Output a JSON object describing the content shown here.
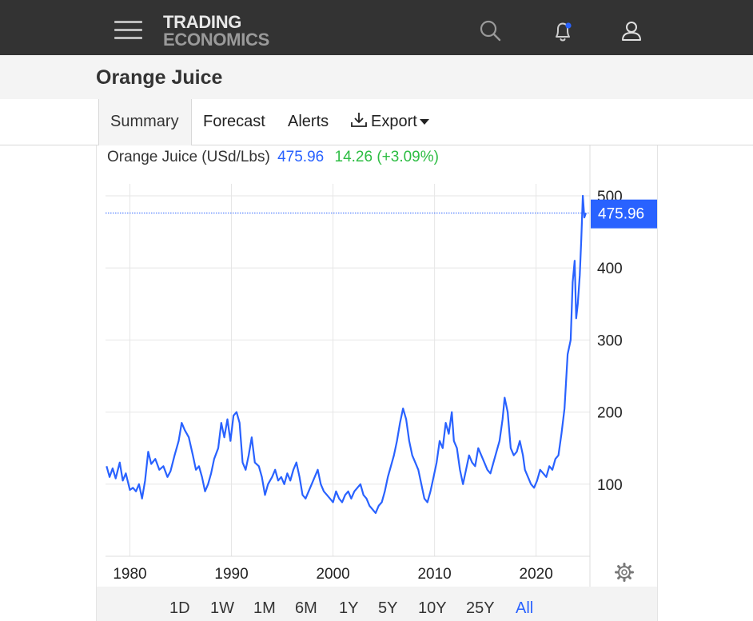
{
  "topbar": {
    "logo_line1": "TRADING",
    "logo_line2": "ECONOMICS",
    "icons": [
      "menu-icon",
      "search-icon",
      "bell-icon",
      "user-icon"
    ],
    "notification_dot_color": "#2962ff"
  },
  "page": {
    "title": "Orange Juice"
  },
  "tabs": [
    {
      "label": "Summary",
      "active": true
    },
    {
      "label": "Forecast"
    },
    {
      "label": "Alerts"
    },
    {
      "label": "Export",
      "icon": "download-icon"
    }
  ],
  "quote": {
    "name": "Orange Juice (USd/Lbs)",
    "price": "475.96",
    "change": "14.26 (+3.09%)",
    "price_color": "#2962ff",
    "change_color": "#2dbd43"
  },
  "ranges": {
    "buttons": [
      "1D",
      "1W",
      "1M",
      "6M",
      "1Y",
      "5Y",
      "10Y",
      "25Y",
      "All"
    ],
    "active": "All"
  },
  "chart_data": {
    "type": "line",
    "title": "Orange Juice (USd/Lbs)",
    "xlabel": "",
    "ylabel": "",
    "xlim": [
      1977.6,
      2025.3
    ],
    "ylim": [
      0,
      500
    ],
    "x_ticks": [
      1980,
      1990,
      2000,
      2010,
      2020
    ],
    "y_ticks": [
      100,
      200,
      300,
      400,
      500
    ],
    "grid": true,
    "y_axis_position": "right",
    "line_color": "#2962ff",
    "last_value_label": "475.96",
    "series": [
      {
        "values": [
          [
            1977.7,
            125
          ],
          [
            1978.0,
            110
          ],
          [
            1978.3,
            122
          ],
          [
            1978.6,
            108
          ],
          [
            1979.0,
            130
          ],
          [
            1979.3,
            105
          ],
          [
            1979.6,
            115
          ],
          [
            1980.0,
            92
          ],
          [
            1980.3,
            95
          ],
          [
            1980.6,
            90
          ],
          [
            1980.9,
            100
          ],
          [
            1981.2,
            80
          ],
          [
            1981.5,
            105
          ],
          [
            1981.8,
            145
          ],
          [
            1982.1,
            128
          ],
          [
            1982.5,
            135
          ],
          [
            1982.9,
            120
          ],
          [
            1983.3,
            125
          ],
          [
            1983.7,
            110
          ],
          [
            1984.0,
            118
          ],
          [
            1984.4,
            140
          ],
          [
            1984.8,
            160
          ],
          [
            1985.1,
            185
          ],
          [
            1985.4,
            175
          ],
          [
            1985.8,
            165
          ],
          [
            1986.2,
            140
          ],
          [
            1986.5,
            120
          ],
          [
            1986.8,
            125
          ],
          [
            1987.1,
            110
          ],
          [
            1987.4,
            90
          ],
          [
            1987.7,
            100
          ],
          [
            1988.0,
            115
          ],
          [
            1988.3,
            135
          ],
          [
            1988.7,
            150
          ],
          [
            1989.0,
            185
          ],
          [
            1989.3,
            165
          ],
          [
            1989.6,
            190
          ],
          [
            1989.9,
            160
          ],
          [
            1990.2,
            195
          ],
          [
            1990.5,
            200
          ],
          [
            1990.8,
            185
          ],
          [
            1991.1,
            130
          ],
          [
            1991.4,
            120
          ],
          [
            1991.7,
            140
          ],
          [
            1992.0,
            165
          ],
          [
            1992.3,
            130
          ],
          [
            1992.7,
            125
          ],
          [
            1993.0,
            110
          ],
          [
            1993.3,
            85
          ],
          [
            1993.6,
            100
          ],
          [
            1994.0,
            110
          ],
          [
            1994.3,
            120
          ],
          [
            1994.6,
            105
          ],
          [
            1994.9,
            110
          ],
          [
            1995.2,
            100
          ],
          [
            1995.5,
            115
          ],
          [
            1995.8,
            105
          ],
          [
            1996.1,
            120
          ],
          [
            1996.4,
            130
          ],
          [
            1996.7,
            110
          ],
          [
            1997.0,
            85
          ],
          [
            1997.3,
            80
          ],
          [
            1997.6,
            90
          ],
          [
            1997.9,
            100
          ],
          [
            1998.2,
            110
          ],
          [
            1998.5,
            120
          ],
          [
            1998.8,
            100
          ],
          [
            1999.1,
            90
          ],
          [
            1999.4,
            85
          ],
          [
            1999.7,
            80
          ],
          [
            2000.0,
            75
          ],
          [
            2000.3,
            90
          ],
          [
            2000.6,
            80
          ],
          [
            2000.9,
            75
          ],
          [
            2001.2,
            85
          ],
          [
            2001.5,
            90
          ],
          [
            2001.8,
            80
          ],
          [
            2002.1,
            90
          ],
          [
            2002.4,
            95
          ],
          [
            2002.7,
            100
          ],
          [
            2003.0,
            85
          ],
          [
            2003.3,
            80
          ],
          [
            2003.6,
            70
          ],
          [
            2003.9,
            65
          ],
          [
            2004.2,
            60
          ],
          [
            2004.5,
            70
          ],
          [
            2004.8,
            75
          ],
          [
            2005.1,
            90
          ],
          [
            2005.4,
            110
          ],
          [
            2005.7,
            125
          ],
          [
            2006.0,
            140
          ],
          [
            2006.3,
            160
          ],
          [
            2006.6,
            185
          ],
          [
            2006.9,
            205
          ],
          [
            2007.2,
            190
          ],
          [
            2007.5,
            160
          ],
          [
            2007.8,
            140
          ],
          [
            2008.1,
            130
          ],
          [
            2008.4,
            120
          ],
          [
            2008.7,
            100
          ],
          [
            2009.0,
            80
          ],
          [
            2009.3,
            75
          ],
          [
            2009.6,
            90
          ],
          [
            2009.9,
            110
          ],
          [
            2010.2,
            130
          ],
          [
            2010.5,
            160
          ],
          [
            2010.8,
            150
          ],
          [
            2011.1,
            185
          ],
          [
            2011.4,
            170
          ],
          [
            2011.7,
            200
          ],
          [
            2011.9,
            160
          ],
          [
            2012.2,
            150
          ],
          [
            2012.5,
            120
          ],
          [
            2012.8,
            100
          ],
          [
            2013.1,
            120
          ],
          [
            2013.4,
            140
          ],
          [
            2013.7,
            130
          ],
          [
            2014.0,
            125
          ],
          [
            2014.3,
            150
          ],
          [
            2014.6,
            140
          ],
          [
            2014.9,
            130
          ],
          [
            2015.2,
            120
          ],
          [
            2015.5,
            115
          ],
          [
            2015.8,
            130
          ],
          [
            2016.1,
            145
          ],
          [
            2016.4,
            160
          ],
          [
            2016.7,
            190
          ],
          [
            2016.9,
            220
          ],
          [
            2017.2,
            200
          ],
          [
            2017.5,
            150
          ],
          [
            2017.8,
            140
          ],
          [
            2018.1,
            145
          ],
          [
            2018.4,
            160
          ],
          [
            2018.7,
            140
          ],
          [
            2018.9,
            120
          ],
          [
            2019.2,
            110
          ],
          [
            2019.5,
            100
          ],
          [
            2019.8,
            95
          ],
          [
            2020.1,
            105
          ],
          [
            2020.4,
            120
          ],
          [
            2020.7,
            115
          ],
          [
            2021.0,
            110
          ],
          [
            2021.3,
            125
          ],
          [
            2021.6,
            120
          ],
          [
            2021.9,
            135
          ],
          [
            2022.2,
            140
          ],
          [
            2022.5,
            170
          ],
          [
            2022.8,
            205
          ],
          [
            2023.1,
            280
          ],
          [
            2023.4,
            300
          ],
          [
            2023.6,
            380
          ],
          [
            2023.8,
            410
          ],
          [
            2023.95,
            330
          ],
          [
            2024.1,
            350
          ],
          [
            2024.3,
            390
          ],
          [
            2024.45,
            440
          ],
          [
            2024.6,
            500
          ],
          [
            2024.75,
            470
          ],
          [
            2024.9,
            475.96
          ]
        ]
      }
    ]
  }
}
